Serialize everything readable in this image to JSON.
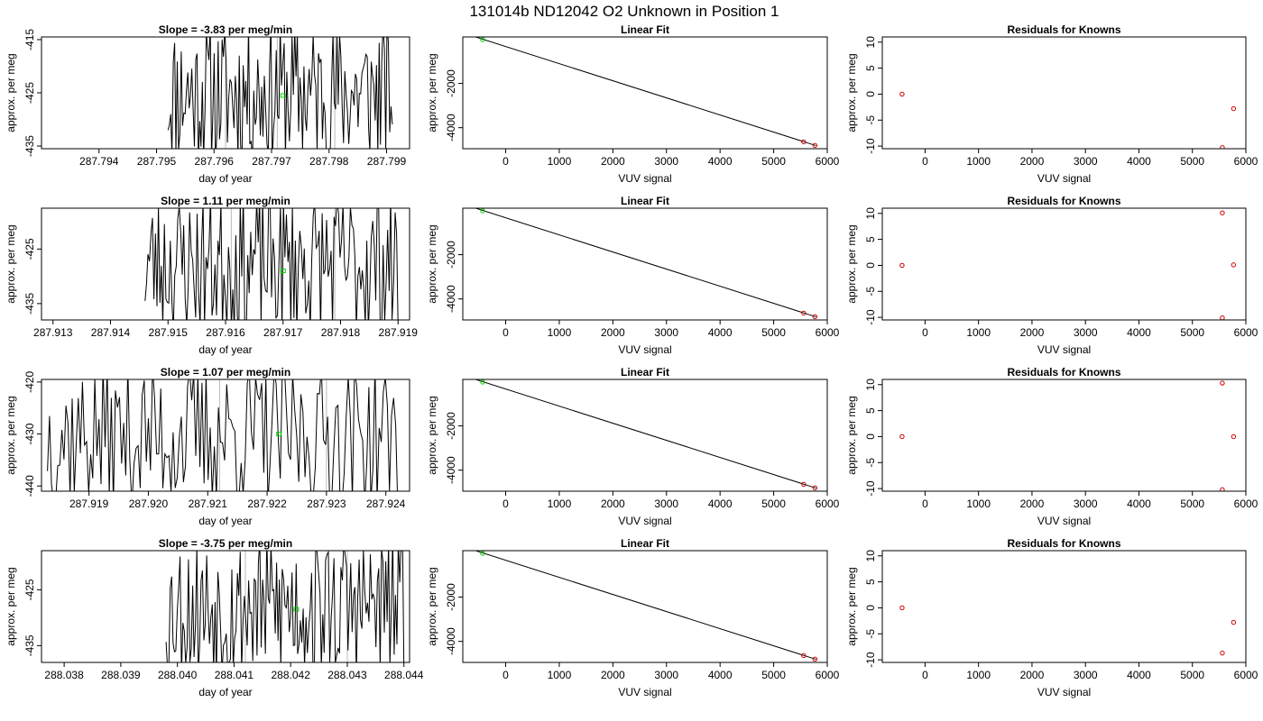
{
  "page": {
    "title": "131014b     ND12042   O2 Unknown in Position  1"
  },
  "chart_data": [
    {
      "type": "line",
      "panel": "time-series",
      "row": 1,
      "title": "Slope =  -3.83  per meg/min",
      "xlabel": "day of year",
      "ylabel": "approx. per meg",
      "xlim": [
        287.793,
        287.7994
      ],
      "ylim": [
        -435.5,
        -414.5
      ],
      "xticks": [
        287.794,
        287.795,
        287.796,
        287.797,
        287.798,
        287.799
      ],
      "xtick_labels": [
        "287.794",
        "287.795",
        "287.796",
        "287.797",
        "287.798",
        "287.799"
      ],
      "yticks": [
        -415,
        -425,
        -435
      ],
      "ytick_labels": [
        "-415",
        "-425",
        "-435"
      ],
      "trace_x_range": [
        287.7952,
        287.7991
      ],
      "vlines_gray": [
        287.7962,
        287.7971,
        287.7981
      ],
      "marker_green": {
        "x": 287.7972,
        "y": -425.5
      },
      "seed": 11
    },
    {
      "type": "line",
      "panel": "linear-fit",
      "row": 1,
      "title": "Linear Fit",
      "xlabel": "VUV signal",
      "ylabel": "approx. per meg",
      "xlim": [
        -800,
        6000
      ],
      "ylim": [
        -4950,
        100
      ],
      "xticks": [
        0,
        1000,
        2000,
        3000,
        4000,
        5000,
        6000
      ],
      "xtick_labels": [
        "0",
        "1000",
        "2000",
        "3000",
        "4000",
        "5000",
        "6000"
      ],
      "yticks": [
        -2000,
        -4000
      ],
      "ytick_labels": [
        "-2000",
        "-4000"
      ],
      "fit_line": [
        [
          -650,
          170
        ],
        [
          5790,
          -4810
        ]
      ],
      "knowns": [
        [
          5560,
          -4640
        ],
        [
          5770,
          -4800
        ]
      ],
      "unknowns": [
        [
          -430,
          -20
        ]
      ]
    },
    {
      "type": "scatter",
      "panel": "residuals",
      "row": 1,
      "title": "Residuals for Knowns",
      "xlabel": "VUV signal",
      "ylabel": "approx. per meg",
      "xlim": [
        -800,
        6000
      ],
      "ylim": [
        -10.5,
        11
      ],
      "xticks": [
        0,
        1000,
        2000,
        3000,
        4000,
        5000,
        6000
      ],
      "xtick_labels": [
        "0",
        "1000",
        "2000",
        "3000",
        "4000",
        "5000",
        "6000"
      ],
      "yticks": [
        10,
        5,
        0,
        -5,
        -10
      ],
      "ytick_labels": [
        "10",
        "5",
        "0",
        "-5",
        "-10"
      ],
      "points": [
        [
          -430,
          0
        ],
        [
          5770,
          -2.8
        ],
        [
          5560,
          -10.3
        ]
      ]
    },
    {
      "type": "line",
      "panel": "time-series",
      "row": 2,
      "title": "Slope =  1.11  per meg/min",
      "xlabel": "day of year",
      "ylabel": "approx. per meg",
      "xlim": [
        287.9128,
        287.9192
      ],
      "ylim": [
        -438,
        -417.5
      ],
      "xticks": [
        287.913,
        287.914,
        287.915,
        287.916,
        287.917,
        287.918,
        287.919
      ],
      "xtick_labels": [
        "287.913",
        "287.914",
        "287.915",
        "287.916",
        "287.917",
        "287.918",
        "287.919"
      ],
      "yticks": [
        -425,
        -435
      ],
      "ytick_labels": [
        "-425",
        "-435"
      ],
      "trace_x_range": [
        287.9146,
        287.919
      ],
      "vlines_gray": [
        287.9161,
        287.9179
      ],
      "marker_green": {
        "x": 287.917,
        "y": -429
      },
      "seed": 23
    },
    {
      "type": "line",
      "panel": "linear-fit",
      "row": 2,
      "title": "Linear Fit",
      "xlabel": "VUV signal",
      "ylabel": "approx. per meg",
      "xlim": [
        -800,
        6000
      ],
      "ylim": [
        -4950,
        100
      ],
      "xticks": [
        0,
        1000,
        2000,
        3000,
        4000,
        5000,
        6000
      ],
      "xtick_labels": [
        "0",
        "1000",
        "2000",
        "3000",
        "4000",
        "5000",
        "6000"
      ],
      "yticks": [
        -2000,
        -4000
      ],
      "ytick_labels": [
        "-2000",
        "-4000"
      ],
      "fit_line": [
        [
          -650,
          170
        ],
        [
          5790,
          -4810
        ]
      ],
      "knowns": [
        [
          5560,
          -4640
        ],
        [
          5770,
          -4800
        ]
      ],
      "unknowns": [
        [
          -430,
          -20
        ]
      ]
    },
    {
      "type": "scatter",
      "panel": "residuals",
      "row": 2,
      "title": "Residuals for Knowns",
      "xlabel": "VUV signal",
      "ylabel": "approx. per meg",
      "xlim": [
        -800,
        6000
      ],
      "ylim": [
        -10.5,
        11
      ],
      "xticks": [
        0,
        1000,
        2000,
        3000,
        4000,
        5000,
        6000
      ],
      "xtick_labels": [
        "0",
        "1000",
        "2000",
        "3000",
        "4000",
        "5000",
        "6000"
      ],
      "yticks": [
        10,
        5,
        0,
        -5,
        -10
      ],
      "ytick_labels": [
        "10",
        "5",
        "0",
        "-5",
        "-10"
      ],
      "points": [
        [
          -430,
          0
        ],
        [
          5560,
          10.1
        ],
        [
          5770,
          0.1
        ],
        [
          5560,
          -10.1
        ]
      ]
    },
    {
      "type": "line",
      "panel": "time-series",
      "row": 3,
      "title": "Slope =  1.07  per meg/min",
      "xlabel": "day of year",
      "ylabel": "approx. per meg",
      "xlim": [
        287.9182,
        287.9244
      ],
      "ylim": [
        -441,
        -419.5
      ],
      "xticks": [
        287.919,
        287.92,
        287.921,
        287.922,
        287.923,
        287.924
      ],
      "xtick_labels": [
        "287.919",
        "287.920",
        "287.921",
        "287.922",
        "287.923",
        "287.924"
      ],
      "yticks": [
        -420,
        -430,
        -440
      ],
      "ytick_labels": [
        "-420",
        "-430",
        "-440"
      ],
      "trace_x_range": [
        287.9183,
        287.9242
      ],
      "vlines_gray": [
        287.9212,
        287.923
      ],
      "marker_green": {
        "x": 287.9222,
        "y": -430
      },
      "seed": 37
    },
    {
      "type": "line",
      "panel": "linear-fit",
      "row": 3,
      "title": "Linear Fit",
      "xlabel": "VUV signal",
      "ylabel": "approx. per meg",
      "xlim": [
        -800,
        6000
      ],
      "ylim": [
        -4950,
        100
      ],
      "xticks": [
        0,
        1000,
        2000,
        3000,
        4000,
        5000,
        6000
      ],
      "xtick_labels": [
        "0",
        "1000",
        "2000",
        "3000",
        "4000",
        "5000",
        "6000"
      ],
      "yticks": [
        -2000,
        -4000
      ],
      "ytick_labels": [
        "-2000",
        "-4000"
      ],
      "fit_line": [
        [
          -650,
          170
        ],
        [
          5790,
          -4810
        ]
      ],
      "knowns": [
        [
          5560,
          -4640
        ],
        [
          5770,
          -4800
        ]
      ],
      "unknowns": [
        [
          -430,
          -20
        ]
      ]
    },
    {
      "type": "scatter",
      "panel": "residuals",
      "row": 3,
      "title": "Residuals for Knowns",
      "xlabel": "VUV signal",
      "ylabel": "approx. per meg",
      "xlim": [
        -800,
        6000
      ],
      "ylim": [
        -10.5,
        11
      ],
      "xticks": [
        0,
        1000,
        2000,
        3000,
        4000,
        5000,
        6000
      ],
      "xtick_labels": [
        "0",
        "1000",
        "2000",
        "3000",
        "4000",
        "5000",
        "6000"
      ],
      "yticks": [
        10,
        5,
        0,
        -5,
        -10
      ],
      "ytick_labels": [
        "10",
        "5",
        "0",
        "-5",
        "-10"
      ],
      "points": [
        [
          -430,
          0
        ],
        [
          5560,
          10.3
        ],
        [
          5770,
          0
        ],
        [
          5560,
          -10.2
        ]
      ]
    },
    {
      "type": "line",
      "panel": "time-series",
      "row": 4,
      "title": "Slope =  -3.75  per meg/min",
      "xlabel": "day of year",
      "ylabel": "approx. per meg",
      "xlim": [
        288.0376,
        288.0441
      ],
      "ylim": [
        -438,
        -418
      ],
      "xticks": [
        288.038,
        288.039,
        288.04,
        288.041,
        288.042,
        288.043,
        288.044
      ],
      "xtick_labels": [
        "288.038",
        "288.039",
        "288.040",
        "288.041",
        "288.042",
        "288.043",
        "288.044"
      ],
      "yticks": [
        -425,
        -435
      ],
      "ytick_labels": [
        "-425",
        "-435"
      ],
      "trace_x_range": [
        288.0398,
        288.044
      ],
      "vlines_gray": [
        288.0412,
        288.043
      ],
      "marker_green": {
        "x": 288.0421,
        "y": -428.5
      },
      "seed": 53
    },
    {
      "type": "line",
      "panel": "linear-fit",
      "row": 4,
      "title": "Linear Fit",
      "xlabel": "VUV signal",
      "ylabel": "approx. per meg",
      "xlim": [
        -800,
        6000
      ],
      "ylim": [
        -4950,
        100
      ],
      "xticks": [
        0,
        1000,
        2000,
        3000,
        4000,
        5000,
        6000
      ],
      "xtick_labels": [
        "0",
        "1000",
        "2000",
        "3000",
        "4000",
        "5000",
        "6000"
      ],
      "yticks": [
        -2000,
        -4000
      ],
      "ytick_labels": [
        "-2000",
        "-4000"
      ],
      "fit_line": [
        [
          -650,
          170
        ],
        [
          5790,
          -4810
        ]
      ],
      "knowns": [
        [
          5560,
          -4640
        ],
        [
          5770,
          -4800
        ]
      ],
      "unknowns": [
        [
          -430,
          -20
        ]
      ]
    },
    {
      "type": "scatter",
      "panel": "residuals",
      "row": 4,
      "title": "Residuals for Knowns",
      "xlabel": "VUV signal",
      "ylabel": "approx. per meg",
      "xlim": [
        -800,
        6000
      ],
      "ylim": [
        -10.5,
        11
      ],
      "xticks": [
        0,
        1000,
        2000,
        3000,
        4000,
        5000,
        6000
      ],
      "xtick_labels": [
        "0",
        "1000",
        "2000",
        "3000",
        "4000",
        "5000",
        "6000"
      ],
      "yticks": [
        10,
        5,
        0,
        -5,
        -10
      ],
      "ytick_labels": [
        "10",
        "5",
        "0",
        "-5",
        "-10"
      ],
      "points": [
        [
          -430,
          0
        ],
        [
          5770,
          -2.8
        ],
        [
          5560,
          -8.7
        ]
      ]
    }
  ],
  "colors": {
    "trace": "#000000",
    "fit_line": "#000000",
    "known_point": "#cc0000",
    "unknown_point": "#00cc00",
    "gray_line": "#bbbbbb"
  }
}
